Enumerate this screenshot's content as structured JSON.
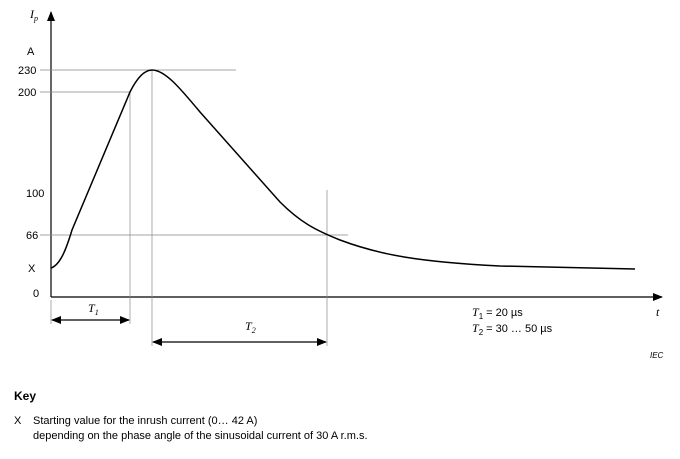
{
  "axis": {
    "y_label": {
      "symbol": "I",
      "subscript": "p"
    },
    "y_unit": "A",
    "x_label": "t",
    "y_ticks": [
      "230",
      "200",
      "100",
      "66",
      "X",
      "0"
    ]
  },
  "intervals": [
    {
      "symbol": "T",
      "subscript": "1"
    },
    {
      "symbol": "T",
      "subscript": "2"
    }
  ],
  "notes": [
    {
      "symbol": "T",
      "subscript": "1",
      "text": "= 20 µs"
    },
    {
      "symbol": "T",
      "subscript": "2",
      "text": "= 30 … 50 µs"
    }
  ],
  "source": "IEC",
  "key": {
    "title": "Key",
    "items": [
      {
        "symbol": "X",
        "lines": [
          "Starting value for the inrush current (0… 42 A)",
          "depending on the phase angle of the sinusoidal current of 30 A r.m.s."
        ]
      }
    ]
  }
}
